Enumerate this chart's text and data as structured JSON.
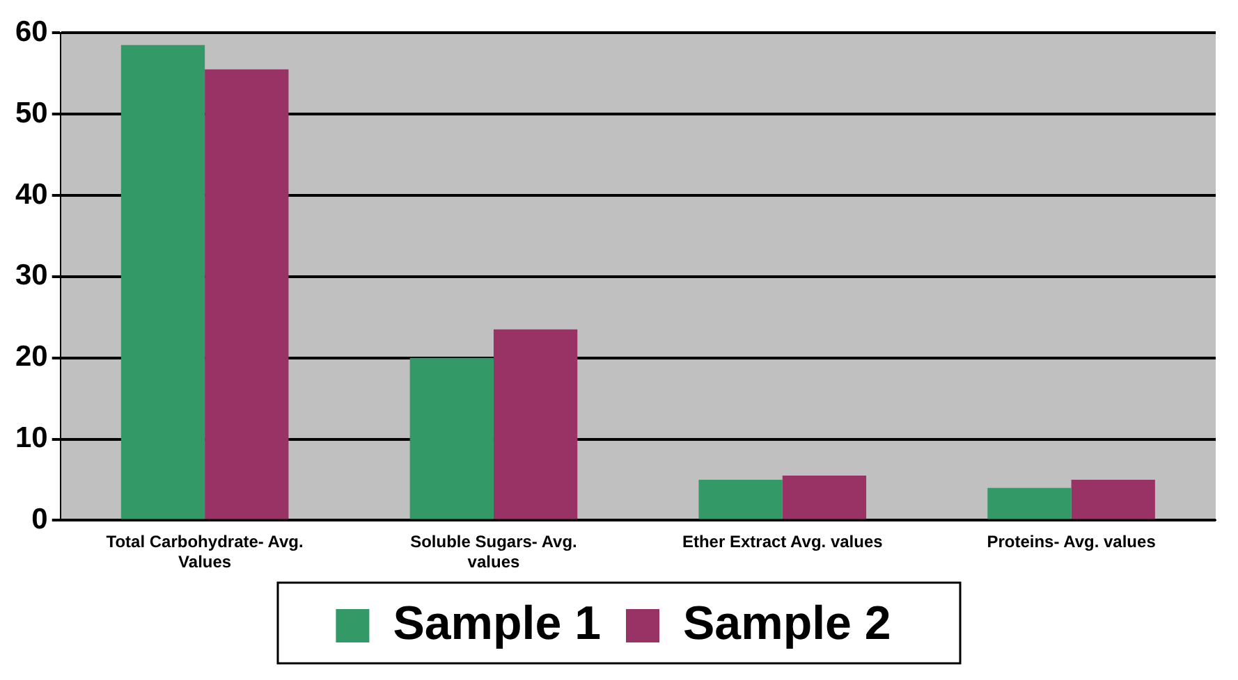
{
  "chart_data": {
    "type": "bar",
    "categories": [
      "Total Carbohydrate- Avg. Values",
      "Soluble Sugars- Avg. values",
      "Ether Extract Avg. values",
      "Proteins- Avg. values"
    ],
    "series": [
      {
        "name": "Sample 1",
        "color": "#339966",
        "values": [
          58.5,
          20,
          5,
          4
        ]
      },
      {
        "name": "Sample 2",
        "color": "#993366",
        "values": [
          55.5,
          23.5,
          5.5,
          5
        ]
      }
    ],
    "ylim": [
      0,
      60
    ],
    "yticks": [
      0,
      10,
      20,
      30,
      40,
      50,
      60
    ],
    "grid": "y",
    "legend": "bottom"
  }
}
